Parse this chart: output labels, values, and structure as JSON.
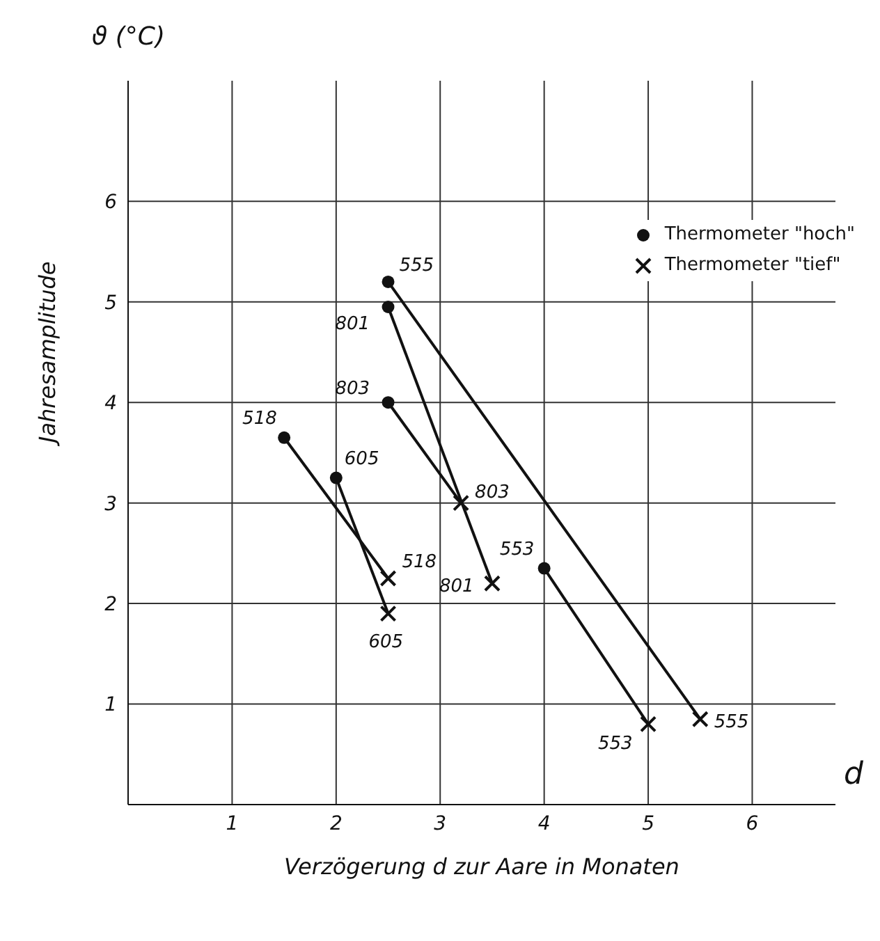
{
  "chart_data": {
    "type": "scatter",
    "xlabel": "Verzögerung  d  zur Aare in Monaten",
    "ylabel": "Jahresamplitude",
    "annotations": [
      "ϑ (°C)",
      "d",
      {
        "text": "518",
        "x": 1.5,
        "y": 3.65
      },
      {
        "text": "605",
        "x": 2.0,
        "y": 3.25
      },
      {
        "text": "803",
        "x": 2.5,
        "y": 4.0
      },
      {
        "text": "801",
        "x": 2.5,
        "y": 4.95
      },
      {
        "text": "555",
        "x": 2.5,
        "y": 5.2
      },
      {
        "text": "553",
        "x": 4.0,
        "y": 2.35
      },
      {
        "text": "518",
        "x": 2.5,
        "y": 2.25
      },
      {
        "text": "605",
        "x": 2.5,
        "y": 1.9
      },
      {
        "text": "803",
        "x": 3.2,
        "y": 3.0
      },
      {
        "text": "801",
        "x": 3.5,
        "y": 2.2
      },
      {
        "text": "555",
        "x": 5.5,
        "y": 0.85
      },
      {
        "text": "553",
        "x": 5.0,
        "y": 0.8
      }
    ],
    "xlim": [
      0,
      6.8
    ],
    "ylim": [
      0,
      7.2
    ],
    "xticks": [
      1,
      2,
      3,
      4,
      5,
      6
    ],
    "yticks": [
      1,
      2,
      3,
      4,
      5,
      6
    ],
    "grid": true,
    "legend": "top right",
    "series": [
      {
        "name": "Thermometer \"hoch\"",
        "color": "#111111",
        "marker": "circle",
        "x": [
          1.5,
          2.0,
          2.5,
          2.5,
          2.5,
          4.0
        ],
        "values": [
          3.65,
          3.25,
          4.0,
          4.95,
          5.2,
          2.35
        ]
      },
      {
        "name": "Thermometer \"tief\"",
        "color": "#111111",
        "marker": "cross",
        "x": [
          2.5,
          2.5,
          3.2,
          3.5,
          5.5,
          5.0
        ],
        "values": [
          2.25,
          1.9,
          3.0,
          2.2,
          0.85,
          0.8
        ]
      },
      {
        "type": "line",
        "color": "#111111",
        "marker": "none",
        "x": [
          1.5,
          2.5
        ],
        "values": [
          3.65,
          2.25
        ]
      },
      {
        "type": "line",
        "color": "#111111",
        "marker": "none",
        "x": [
          2.0,
          2.5
        ],
        "values": [
          3.25,
          1.9
        ]
      },
      {
        "type": "line",
        "color": "#111111",
        "marker": "none",
        "x": [
          2.5,
          3.2
        ],
        "values": [
          4.0,
          3.0
        ]
      },
      {
        "type": "line",
        "color": "#111111",
        "marker": "none",
        "x": [
          2.5,
          3.5
        ],
        "values": [
          4.95,
          2.2
        ]
      },
      {
        "type": "line",
        "color": "#111111",
        "marker": "none",
        "x": [
          2.5,
          5.5
        ],
        "values": [
          5.2,
          0.85
        ]
      },
      {
        "type": "line",
        "color": "#111111",
        "marker": "none",
        "x": [
          4.0,
          5.0
        ],
        "values": [
          2.35,
          0.8
        ]
      }
    ]
  }
}
